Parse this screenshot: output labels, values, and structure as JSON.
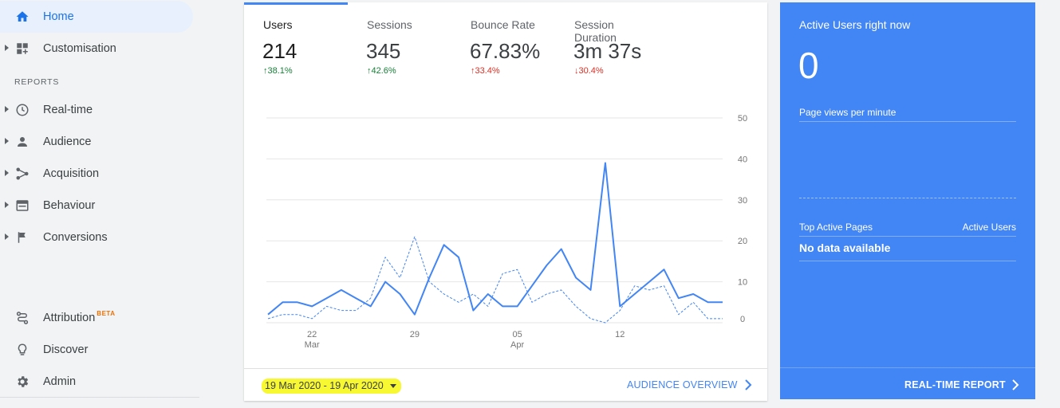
{
  "sidebar": {
    "home": "Home",
    "customisation": "Customisation",
    "reports_section": "REPORTS",
    "realtime": "Real-time",
    "audience": "Audience",
    "acquisition": "Acquisition",
    "behaviour": "Behaviour",
    "conversions": "Conversions",
    "attribution": "Attribution",
    "attribution_badge": "BETA",
    "discover": "Discover",
    "admin": "Admin"
  },
  "metrics": [
    {
      "label": "Users",
      "value": "214",
      "delta": "38.1%",
      "direction": "up",
      "selected": true
    },
    {
      "label": "Sessions",
      "value": "345",
      "delta": "42.6%",
      "direction": "up",
      "selected": false
    },
    {
      "label": "Bounce Rate",
      "value": "67.83%",
      "delta": "33.4%",
      "direction": "down-bad",
      "selected": false
    },
    {
      "label": "Session Duration",
      "value": "3m 37s",
      "delta": "30.4%",
      "direction": "down",
      "selected": false
    }
  ],
  "chart_data": {
    "type": "line",
    "ylim": [
      0,
      50
    ],
    "yticks": [
      "50",
      "40",
      "30",
      "20",
      "10",
      "0"
    ],
    "xtick_labels": [
      {
        "day": "22",
        "month": "Mar",
        "index": 3
      },
      {
        "day": "29",
        "month": "",
        "index": 10
      },
      {
        "day": "05",
        "month": "Apr",
        "index": 17
      },
      {
        "day": "12",
        "month": "",
        "index": 24
      }
    ],
    "series": [
      {
        "style": "solid",
        "color": "#4285f4",
        "values": [
          2,
          5,
          5,
          4,
          6,
          8,
          6,
          4,
          10,
          7,
          2,
          11,
          19,
          16,
          3,
          7,
          4,
          4,
          9,
          14,
          18,
          11,
          8,
          39,
          4,
          7,
          10,
          13,
          6,
          7,
          5,
          5
        ]
      },
      {
        "style": "dashed",
        "color": "#4285f4",
        "values": [
          1,
          2,
          2,
          1,
          4,
          3,
          3,
          6,
          16,
          11,
          21,
          10,
          7,
          5,
          7,
          4,
          12,
          13,
          5,
          7,
          8,
          4,
          1,
          0,
          3,
          9,
          8,
          9,
          2,
          5,
          1,
          1
        ]
      }
    ]
  },
  "footer": {
    "date_range": "19 Mar 2020 - 19 Apr 2020",
    "audience_link": "AUDIENCE OVERVIEW"
  },
  "realtime": {
    "title": "Active Users right now",
    "value": "0",
    "page_views": "Page views per minute",
    "top_pages": "Top Active Pages",
    "active_users": "Active Users",
    "no_data": "No data available",
    "report_link": "REAL-TIME REPORT"
  },
  "colors": {
    "accent": "#4285f4",
    "up": "#188038",
    "down": "#d93025"
  }
}
